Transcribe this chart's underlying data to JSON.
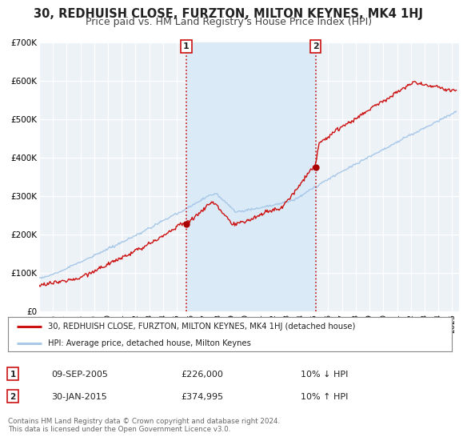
{
  "title": "30, REDHUISH CLOSE, FURZTON, MILTON KEYNES, MK4 1HJ",
  "subtitle": "Price paid vs. HM Land Registry's House Price Index (HPI)",
  "ylim": [
    0,
    700000
  ],
  "xlim_start": 1995.0,
  "xlim_end": 2025.5,
  "yticks": [
    0,
    100000,
    200000,
    300000,
    400000,
    500000,
    600000,
    700000
  ],
  "ytick_labels": [
    "£0",
    "£100K",
    "£200K",
    "£300K",
    "£400K",
    "£500K",
    "£600K",
    "£700K"
  ],
  "xtick_years": [
    1995,
    1996,
    1997,
    1998,
    1999,
    2000,
    2001,
    2002,
    2003,
    2004,
    2005,
    2006,
    2007,
    2008,
    2009,
    2010,
    2011,
    2012,
    2013,
    2014,
    2015,
    2016,
    2017,
    2018,
    2019,
    2020,
    2021,
    2022,
    2023,
    2024,
    2025
  ],
  "marker1_x": 2005.69,
  "marker1_y": 226000,
  "marker2_x": 2015.08,
  "marker2_y": 374995,
  "vline1_x": 2005.69,
  "vline2_x": 2015.08,
  "shade_xmin": 2005.69,
  "shade_xmax": 2015.08,
  "hpi_color": "#a8c8e8",
  "price_color": "#cc1111",
  "marker_color": "#aa0000",
  "shade_color": "#daeaf7",
  "legend_label_price": "30, REDHUISH CLOSE, FURZTON, MILTON KEYNES, MK4 1HJ (detached house)",
  "legend_label_hpi": "HPI: Average price, detached house, Milton Keynes",
  "info1_date": "09-SEP-2005",
  "info1_price": "£226,000",
  "info1_hpi": "10% ↓ HPI",
  "info2_date": "30-JAN-2015",
  "info2_price": "£374,995",
  "info2_hpi": "10% ↑ HPI",
  "footnote": "Contains HM Land Registry data © Crown copyright and database right 2024.\nThis data is licensed under the Open Government Licence v3.0.",
  "bg_color": "#ffffff",
  "plot_bg_color": "#edf2f7",
  "grid_color": "#ffffff",
  "title_fontsize": 10.5,
  "subtitle_fontsize": 9
}
